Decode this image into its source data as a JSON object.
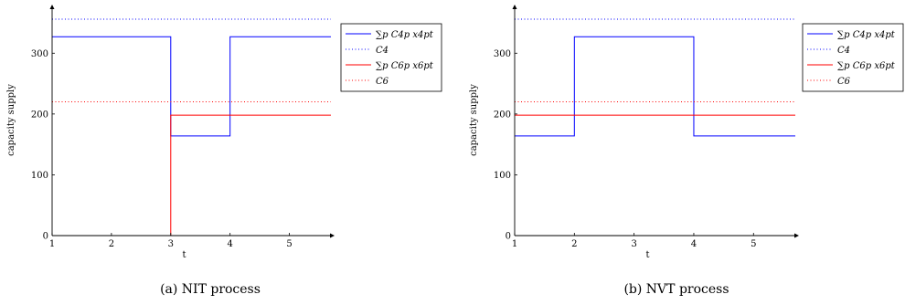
{
  "chart_data": [
    {
      "type": "line",
      "step": true,
      "caption": "(a)  NIT process",
      "xlabel": "t",
      "ylabel": "capacity supply",
      "xlim": [
        1,
        5.7
      ],
      "ylim": [
        0,
        365
      ],
      "xticks": [
        "1",
        "2",
        "3",
        "4",
        "5"
      ],
      "yticks": [
        "0",
        "100",
        "200",
        "300"
      ],
      "grid": false,
      "legend": "outside-right-top",
      "series": [
        {
          "name": "∑p C4p x4pt",
          "style": "solid",
          "color": "#0000ff",
          "x": [
            1,
            3,
            3,
            4,
            4,
            5.7
          ],
          "y": [
            327,
            327,
            164,
            164,
            327,
            327
          ]
        },
        {
          "name": "C4",
          "style": "dotted",
          "color": "#0000ff",
          "x": [
            1,
            5.7
          ],
          "y": [
            356,
            356
          ]
        },
        {
          "name": "∑p C6p x6pt",
          "style": "solid",
          "color": "#ff0000",
          "x": [
            1,
            3,
            3,
            5.7
          ],
          "y": [
            0,
            0,
            198,
            198
          ]
        },
        {
          "name": "C6",
          "style": "dotted",
          "color": "#ff0000",
          "x": [
            1,
            5.7
          ],
          "y": [
            220,
            220
          ]
        }
      ]
    },
    {
      "type": "line",
      "step": true,
      "caption": "(b)  NVT process",
      "xlabel": "t",
      "ylabel": "capacity supply",
      "xlim": [
        1,
        5.7
      ],
      "ylim": [
        0,
        365
      ],
      "xticks": [
        "1",
        "2",
        "3",
        "4",
        "5"
      ],
      "yticks": [
        "0",
        "100",
        "200",
        "300"
      ],
      "grid": false,
      "legend": "outside-right-top",
      "series": [
        {
          "name": "∑p C4p x4pt",
          "style": "solid",
          "color": "#0000ff",
          "x": [
            1,
            2,
            2,
            4,
            4,
            5.7
          ],
          "y": [
            164,
            164,
            327,
            327,
            164,
            164
          ]
        },
        {
          "name": "C4",
          "style": "dotted",
          "color": "#0000ff",
          "x": [
            1,
            5.7
          ],
          "y": [
            356,
            356
          ]
        },
        {
          "name": "∑p C6p x6pt",
          "style": "solid",
          "color": "#ff0000",
          "x": [
            1,
            5.7
          ],
          "y": [
            198,
            198
          ]
        },
        {
          "name": "C6",
          "style": "dotted",
          "color": "#ff0000",
          "x": [
            1,
            5.7
          ],
          "y": [
            220,
            220
          ]
        }
      ]
    }
  ]
}
